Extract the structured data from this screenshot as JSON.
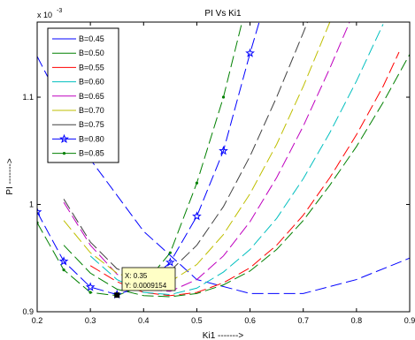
{
  "chart_data": {
    "type": "line",
    "title": "PI Vs Ki1",
    "xlabel": "Ki1 ------->",
    "ylabel": "PI ------->",
    "exponent_label": "x 10",
    "exponent_power": "-3",
    "xlim": [
      0.2,
      0.9
    ],
    "ylim": [
      0.9,
      1.17
    ],
    "x_ticks": [
      0.2,
      0.3,
      0.4,
      0.5,
      0.6,
      0.7,
      0.8,
      0.9
    ],
    "x_tick_labels": [
      "0.2",
      "0.3",
      "0.4",
      "0.5",
      "0.6",
      "0.7",
      "0.8",
      "0.9"
    ],
    "y_ticks": [
      0.9,
      1.0,
      1.1
    ],
    "y_tick_labels": [
      "0.9",
      "1",
      "1.1"
    ],
    "grid": false,
    "legend_position": "top-left",
    "series": [
      {
        "name": "B=0.45",
        "color": "#0000ff",
        "marker": "none",
        "x": [
          0.2,
          0.3,
          0.4,
          0.5,
          0.6,
          0.7,
          0.8,
          0.9
        ],
        "y": [
          1.138,
          1.042,
          0.975,
          0.93,
          0.917,
          0.917,
          0.93,
          0.95
        ]
      },
      {
        "name": "B=0.50",
        "color": "#008000",
        "marker": "none",
        "x": [
          0.25,
          0.3,
          0.35,
          0.4,
          0.45,
          0.5,
          0.55,
          0.6,
          0.65,
          0.7,
          0.75,
          0.8,
          0.85,
          0.9
        ],
        "y": [
          0.962,
          0.936,
          0.921,
          0.915,
          0.914,
          0.917,
          0.925,
          0.938,
          0.958,
          0.985,
          1.018,
          1.054,
          1.095,
          1.14
        ]
      },
      {
        "name": "B=0.55",
        "color": "#ff0000",
        "marker": "none",
        "x": [
          0.3,
          0.35,
          0.4,
          0.45,
          0.5,
          0.55,
          0.6,
          0.65,
          0.7,
          0.75,
          0.8,
          0.85,
          0.88
        ],
        "y": [
          0.943,
          0.928,
          0.918,
          0.915,
          0.918,
          0.927,
          0.941,
          0.962,
          0.99,
          1.025,
          1.065,
          1.11,
          1.142
        ]
      },
      {
        "name": "B=0.60",
        "color": "#00bfbf",
        "marker": "none",
        "x": [
          0.3,
          0.35,
          0.4,
          0.45,
          0.5,
          0.55,
          0.6,
          0.65,
          0.7,
          0.75,
          0.8,
          0.85
        ],
        "y": [
          0.952,
          0.93,
          0.918,
          0.916,
          0.922,
          0.937,
          0.958,
          0.987,
          1.024,
          1.067,
          1.115,
          1.168
        ]
      },
      {
        "name": "B=0.65",
        "color": "#bf00bf",
        "marker": "none",
        "x": [
          0.25,
          0.3,
          0.35,
          0.4,
          0.45,
          0.5,
          0.55,
          0.6,
          0.65,
          0.7,
          0.75,
          0.8
        ],
        "y": [
          1.002,
          0.962,
          0.935,
          0.921,
          0.919,
          0.93,
          0.952,
          0.984,
          1.025,
          1.073,
          1.127,
          1.185
        ]
      },
      {
        "name": "B=0.70",
        "color": "#bfbf00",
        "marker": "none",
        "x": [
          0.25,
          0.3,
          0.35,
          0.4,
          0.45,
          0.5,
          0.55,
          0.6,
          0.65,
          0.7,
          0.75
        ],
        "y": [
          0.985,
          0.955,
          0.936,
          0.927,
          0.928,
          0.944,
          0.972,
          1.01,
          1.056,
          1.11,
          1.17
        ]
      },
      {
        "name": "B=0.75",
        "color": "#404040",
        "marker": "none",
        "x": [
          0.25,
          0.3,
          0.35,
          0.4,
          0.45,
          0.5,
          0.55,
          0.6,
          0.65,
          0.7,
          0.72
        ],
        "y": [
          1.005,
          0.965,
          0.94,
          0.932,
          0.938,
          0.962,
          0.998,
          1.045,
          1.1,
          1.16,
          1.185
        ]
      },
      {
        "name": "B=0.80",
        "color": "#0000ff",
        "marker": "star",
        "x": [
          0.2,
          0.25,
          0.3,
          0.35,
          0.4,
          0.45,
          0.5,
          0.55,
          0.6,
          0.65
        ],
        "y": [
          0.993,
          0.947,
          0.923,
          0.916,
          0.924,
          0.946,
          0.989,
          1.05,
          1.141,
          1.225
        ],
        "marker_x": [
          0.2,
          0.25,
          0.3,
          0.35,
          0.4,
          0.45,
          0.5,
          0.55,
          0.6
        ],
        "marker_y": [
          0.993,
          0.947,
          0.923,
          0.916,
          0.924,
          0.946,
          0.989,
          1.05,
          1.141
        ]
      },
      {
        "name": "B=0.85",
        "color": "#008000",
        "marker": "dot",
        "x": [
          0.2,
          0.25,
          0.3,
          0.35,
          0.4,
          0.45,
          0.5,
          0.55,
          0.6
        ],
        "y": [
          0.983,
          0.939,
          0.918,
          0.915,
          0.925,
          0.955,
          1.02,
          1.1,
          1.2
        ],
        "marker_x": [
          0.2,
          0.25,
          0.3,
          0.35,
          0.4,
          0.45,
          0.5,
          0.55
        ],
        "marker_y": [
          0.983,
          0.939,
          0.918,
          0.915,
          0.925,
          0.955,
          1.02,
          1.1
        ]
      }
    ],
    "datatip": {
      "x": 0.35,
      "y": 0.9155,
      "line1": "X: 0.35",
      "line2": "Y: 0.0009154"
    }
  }
}
